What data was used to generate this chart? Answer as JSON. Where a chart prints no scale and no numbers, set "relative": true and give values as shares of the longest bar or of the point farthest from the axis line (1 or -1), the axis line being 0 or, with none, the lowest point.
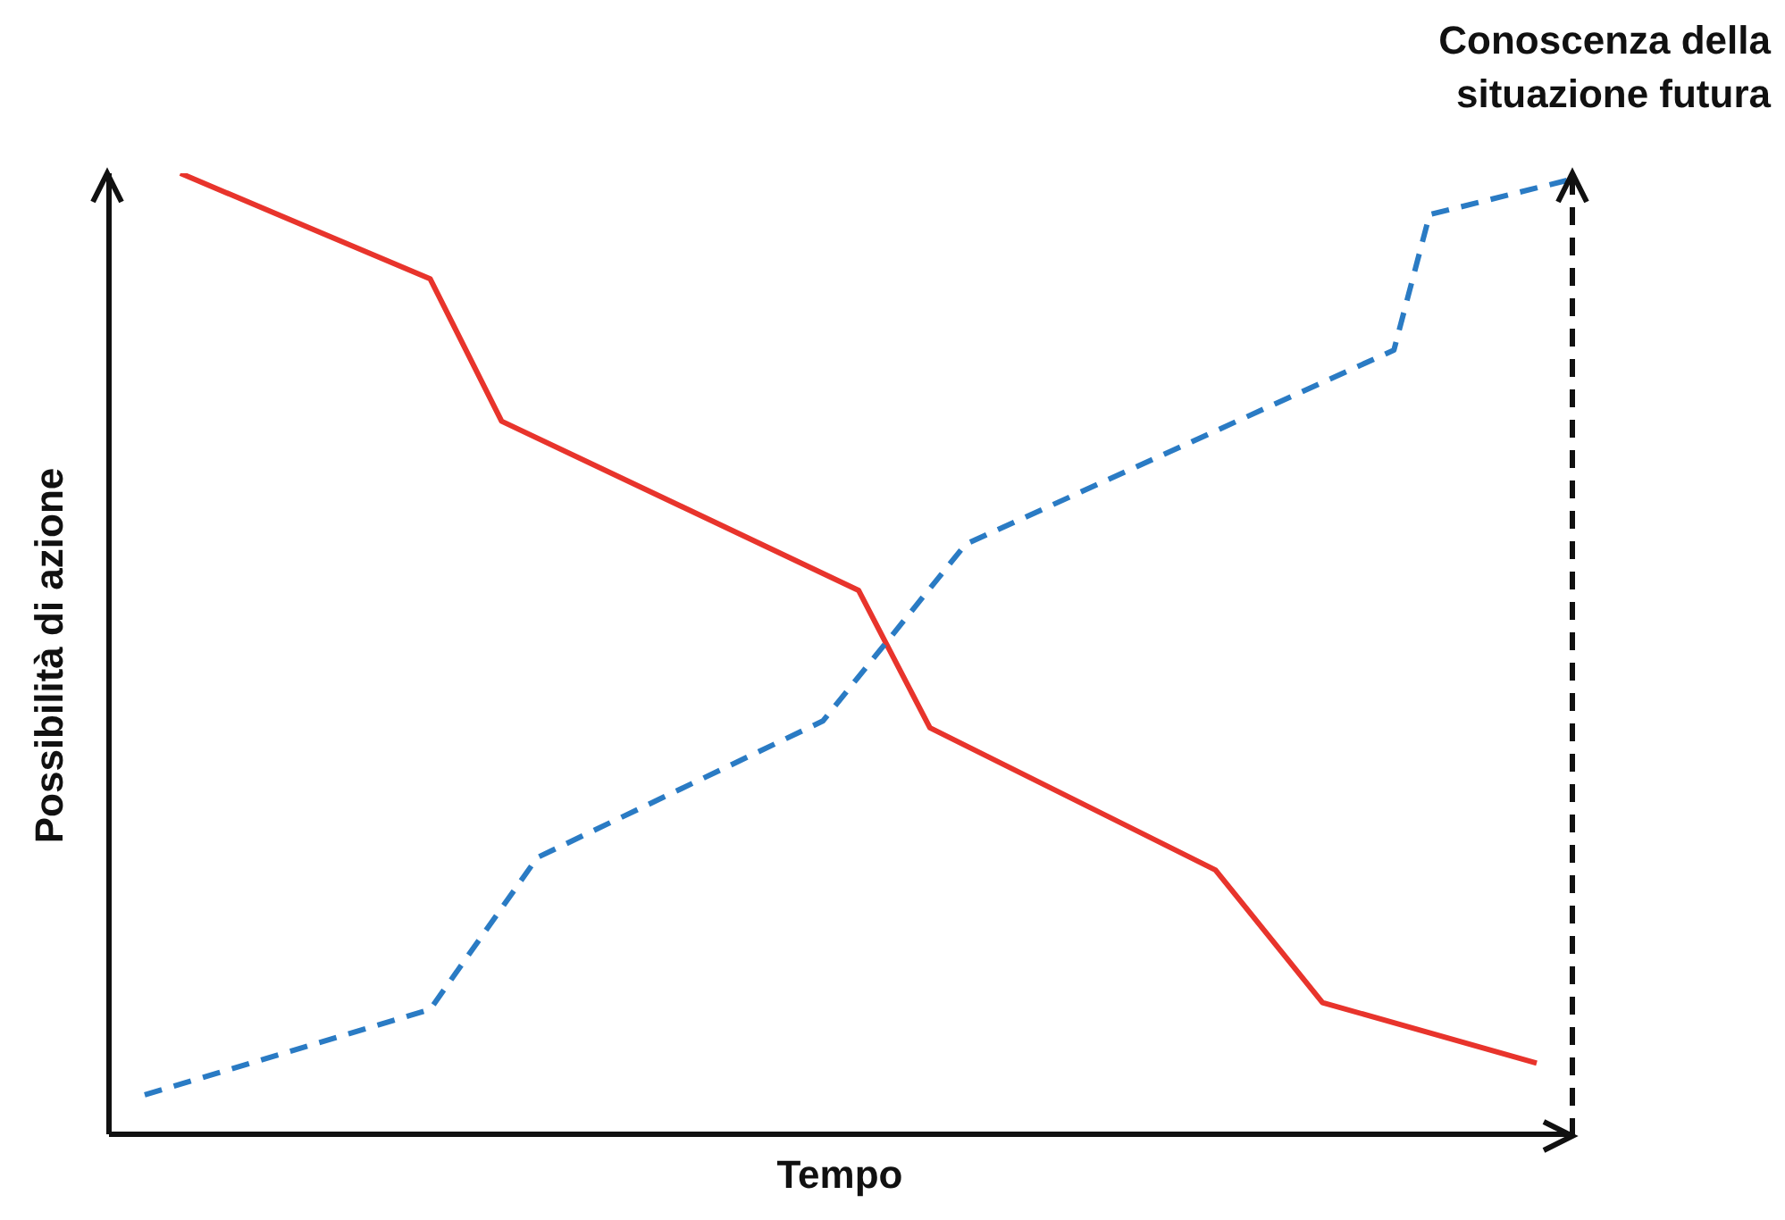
{
  "chart_data": {
    "type": "line",
    "relative": true,
    "xlabel": "Tempo",
    "ylabel": "Possibilità di azione",
    "grid": false,
    "legend": false,
    "marker": "none",
    "categories": [
      null,
      null,
      null,
      null,
      null,
      null,
      null,
      null,
      null,
      null,
      null,
      null,
      null,
      null,
      null,
      null,
      null,
      null,
      null,
      null,
      null,
      null,
      null,
      null,
      null,
      null,
      null,
      null,
      null,
      null,
      null,
      null,
      null,
      null,
      null,
      null,
      null,
      null,
      null,
      null,
      null,
      null
    ],
    "series": [
      {
        "color": "#e8342c",
        "line_style": "solid",
        "values": [
          null,
          null,
          1.0,
          null,
          null,
          null,
          null,
          null,
          null,
          0.89,
          null,
          0.742,
          null,
          null,
          null,
          null,
          null,
          null,
          null,
          null,
          null,
          0.566,
          null,
          0.423,
          null,
          null,
          null,
          null,
          null,
          null,
          null,
          0.275,
          null,
          null,
          0.137,
          null,
          null,
          null,
          null,
          null,
          0.074,
          null
        ]
      },
      {
        "color": "#2a7bc4",
        "line_style": "dashed",
        "values": [
          null,
          0.041,
          null,
          null,
          null,
          null,
          null,
          null,
          null,
          0.13,
          null,
          null,
          0.288,
          null,
          null,
          null,
          null,
          null,
          null,
          null,
          0.43,
          null,
          null,
          null,
          0.614,
          null,
          null,
          null,
          null,
          null,
          null,
          null,
          null,
          null,
          null,
          null,
          0.816,
          0.957,
          null,
          null,
          null,
          0.994
        ]
      }
    ],
    "annotations": [
      "Conoscenza della situazione futura"
    ]
  }
}
